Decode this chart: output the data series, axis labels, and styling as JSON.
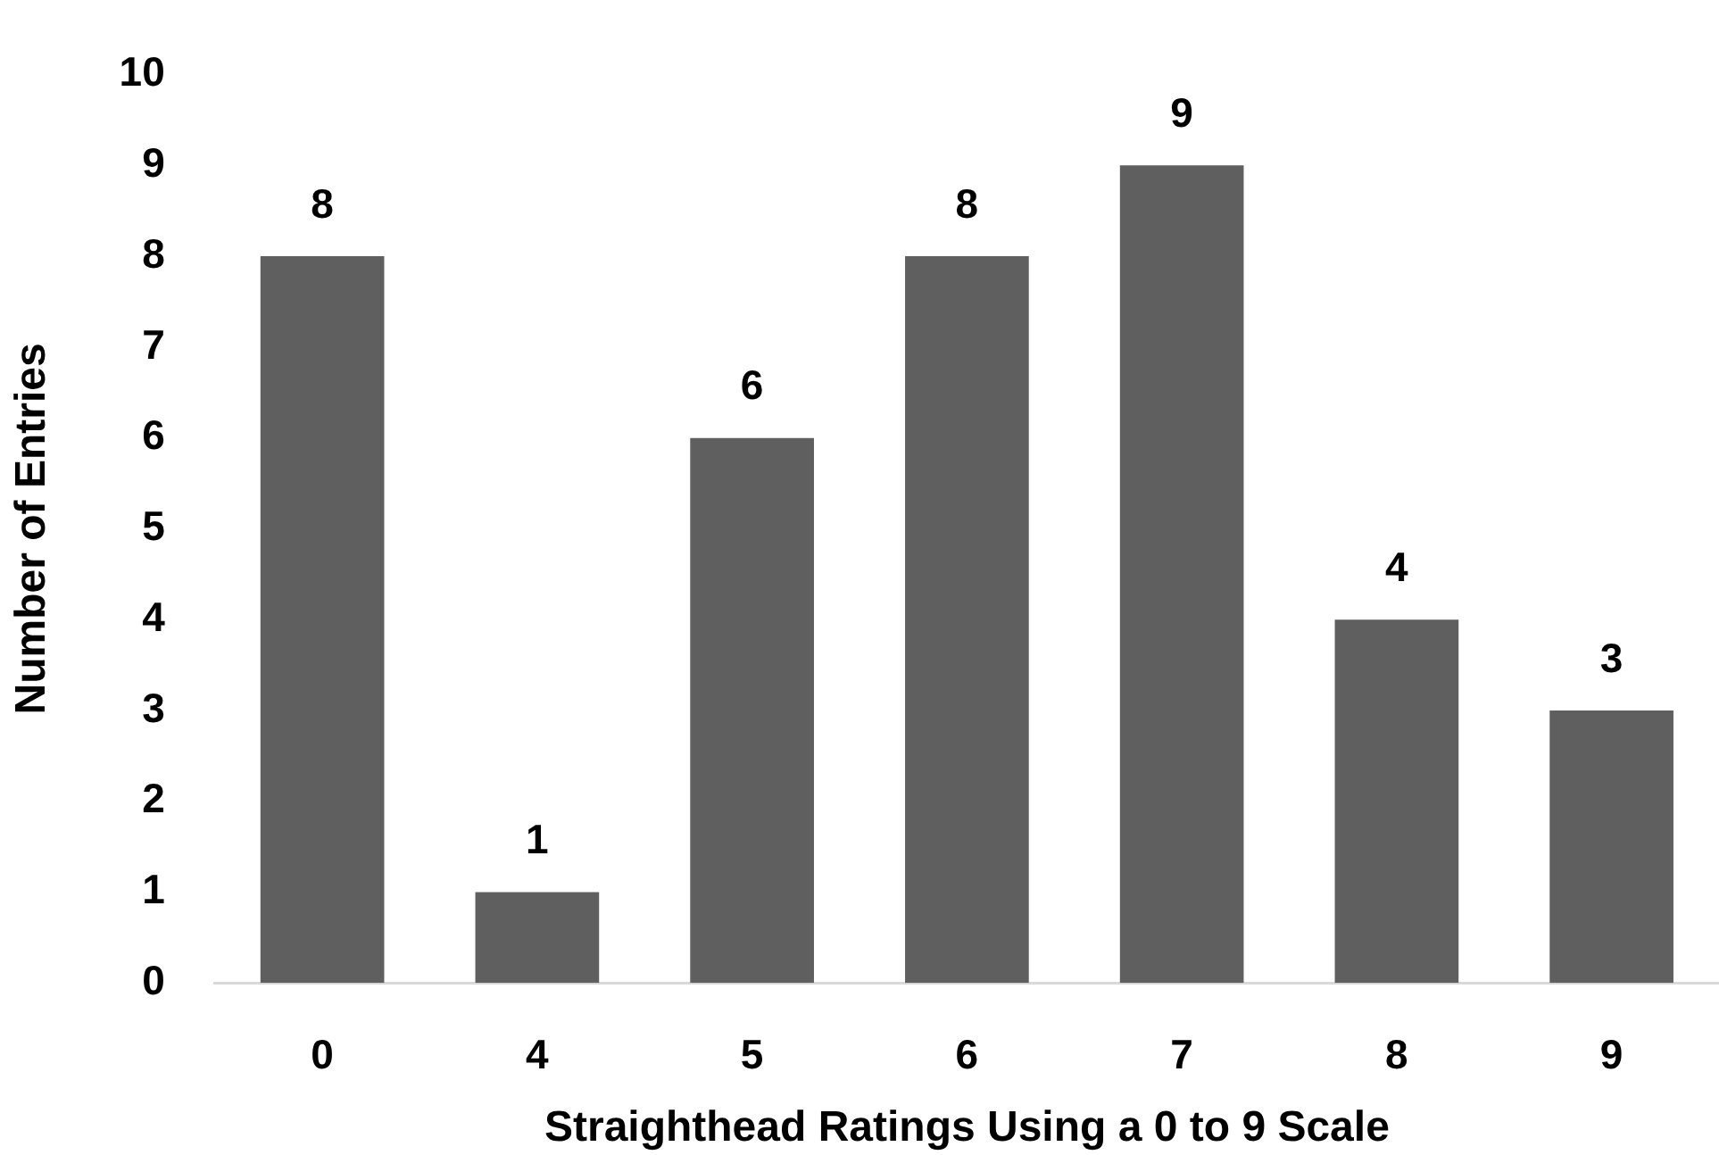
{
  "chart_data": {
    "type": "bar",
    "xlabel": "Straighthead Ratings Using a 0 to 9 Scale",
    "ylabel": "Number of Entries",
    "categories": [
      "0",
      "4",
      "5",
      "6",
      "7",
      "8",
      "9"
    ],
    "values": [
      8,
      1,
      6,
      8,
      9,
      4,
      3
    ],
    "color": "#5f5f5f",
    "ylim": [
      0,
      10
    ],
    "yticks": [
      0,
      1,
      2,
      3,
      4,
      5,
      6,
      7,
      8,
      9,
      10
    ],
    "data_labels": true
  }
}
